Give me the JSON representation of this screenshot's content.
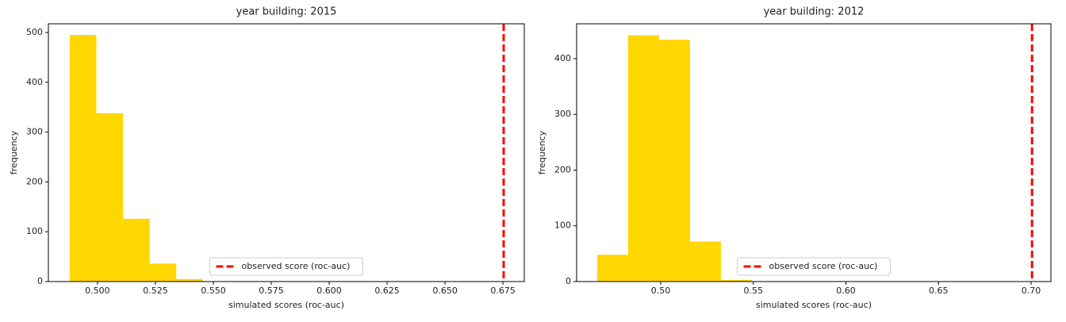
{
  "chart_data": [
    {
      "type": "histogram",
      "title": "year building: 2015",
      "x_label": "simulated scores (roc-auc)",
      "y_label": "frequency",
      "bins": [
        0.488,
        0.4995,
        0.511,
        0.5225,
        0.534,
        0.5455
      ],
      "values": [
        495,
        338,
        126,
        36,
        5
      ],
      "color": "#ffd700",
      "reference_line": {
        "name": "observed score (roc-auc)",
        "value": 0.6753,
        "color": "#ff0000"
      },
      "legend": "lower center",
      "xlim": [
        0.4788,
        0.6842
      ],
      "xticks": [
        {
          "value": 0.5,
          "label": "0.500"
        },
        0.525,
        {
          "value": 0.55,
          "label": "0.550"
        },
        0.575,
        {
          "value": 0.6,
          "label": "0.600"
        },
        0.625,
        {
          "value": 0.65,
          "label": "0.650"
        },
        0.675
      ],
      "ylim": [
        0,
        517.5
      ],
      "yticks": [
        0,
        100,
        200,
        300,
        400,
        500
      ]
    },
    {
      "type": "histogram",
      "title": "year building: 2012",
      "x_label": "simulated scores (roc-auc)",
      "y_label": "frequency",
      "bins": [
        0.4657,
        0.4824,
        0.4991,
        0.5158,
        0.5325,
        0.5492
      ],
      "values": [
        48,
        442,
        434,
        72,
        3
      ],
      "color": "#ffd700",
      "reference_line": {
        "name": "observed score (roc-auc)",
        "value": 0.7005,
        "color": "#ff0000"
      },
      "legend": "lower center",
      "xlim": [
        0.4546,
        0.7107
      ],
      "xticks": [
        {
          "value": 0.5,
          "label": "0.50"
        },
        0.55,
        {
          "value": 0.6,
          "label": "0.60"
        },
        0.65,
        {
          "value": 0.7,
          "label": "0.70"
        }
      ],
      "ylim": [
        0,
        462.6
      ],
      "yticks": [
        0,
        100,
        200,
        300,
        400
      ]
    }
  ]
}
